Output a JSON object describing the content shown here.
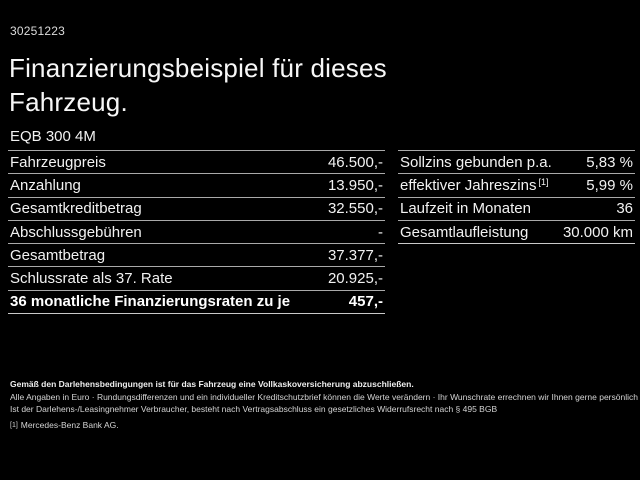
{
  "page": {
    "ref_number": "30251223",
    "title_line1": "Finanzierungsbeispiel für dieses",
    "title_line2": "Fahrzeug.",
    "model": "EQB 300 4M"
  },
  "tables": {
    "left": {
      "rows": [
        {
          "label": "Fahrzeugpreis",
          "value": "46.500,-"
        },
        {
          "label": "Anzahlung",
          "value": "13.950,-"
        },
        {
          "label": "Gesamtkreditbetrag",
          "value": "32.550,-"
        },
        {
          "label": "Abschlussgebühren",
          "value": "-"
        },
        {
          "label": "Gesamtbetrag",
          "value": "37.377,-"
        },
        {
          "label": "Schlussrate als 37. Rate",
          "value": "20.925,-"
        },
        {
          "label": "36 monatliche Finanzierungsraten zu je",
          "value": "457,-"
        }
      ]
    },
    "right": {
      "rows": [
        {
          "label": "Sollzins gebunden p.a.",
          "value": "5,83 %"
        },
        {
          "label": "effektiver Jahreszins",
          "sup": "[1]",
          "value": "5,99 %"
        },
        {
          "label": "Laufzeit in Monaten",
          "value": "36"
        },
        {
          "label": "Gesamtlaufleistung",
          "value": "30.000 km"
        }
      ]
    }
  },
  "footer": {
    "insurance_note": "Gemäß den Darlehensbedingungen ist für das Fahrzeug eine Vollkaskoversicherung abzuschließen.",
    "disclaimer_line1": "Alle Angaben in Euro · Rundungsdifferenzen und ein individueller Kreditschutzbrief können die Werte verändern · Ihr Wunschrate errechnen wir Ihnen gerne persönlich",
    "disclaimer_line2": "Ist der Darlehens-/Leasingnehmer Verbraucher, besteht nach Vertragsabschluss ein gesetzliches Widerrufsrecht nach § 495 BGB",
    "footnote_marker": "[1]",
    "footnote_text": "Mercedes-Benz Bank AG."
  },
  "colors": {
    "background": "#000000",
    "text": "#ffffff",
    "divider": "#a9a9a9"
  }
}
